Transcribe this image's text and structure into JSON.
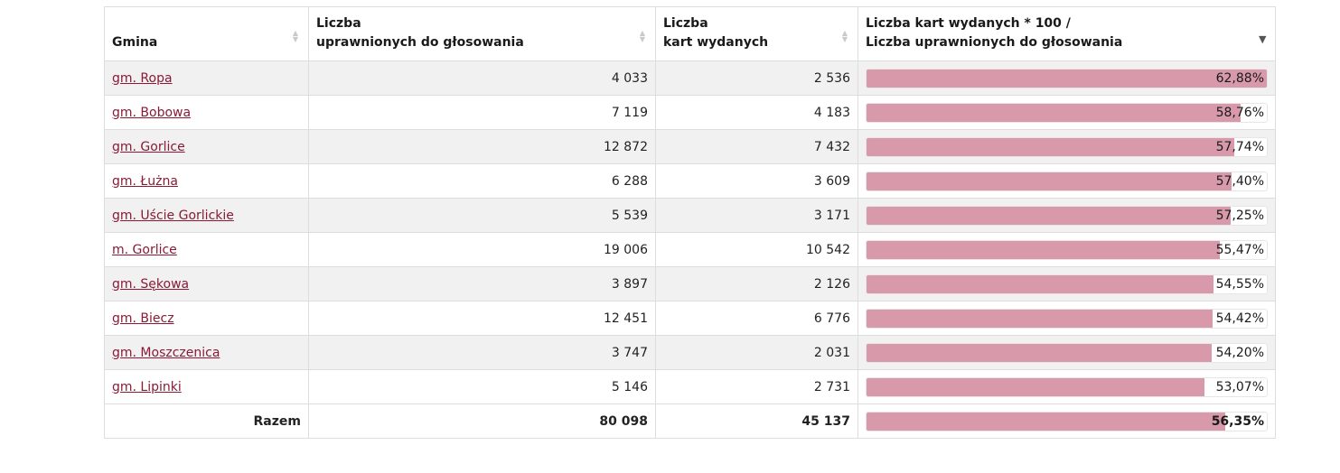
{
  "columns": {
    "gmina": "Gmina",
    "uprawnieni_l1": "Liczba",
    "uprawnieni_l2": "uprawnionych do głosowania",
    "karty_l1": "Liczba",
    "karty_l2": "kart wydanych",
    "frek_l1": "Liczba kart wydanych * 100 /",
    "frek_l2": "Liczba uprawnionych do głosowania"
  },
  "sort_icons": {
    "inactive": "▲▼",
    "active": "▼"
  },
  "colors": {
    "bar_fill": "#d89aab",
    "link": "#8a1a35",
    "row_stripe": "#f1f1f1"
  },
  "rows": [
    {
      "name": "gm. Ropa",
      "uprawnieni": "4 033",
      "karty": "2 536",
      "pct_label": "62,88%",
      "pct": 62.88
    },
    {
      "name": "gm. Bobowa",
      "uprawnieni": "7 119",
      "karty": "4 183",
      "pct_label": "58,76%",
      "pct": 58.76
    },
    {
      "name": "gm. Gorlice",
      "uprawnieni": "12 872",
      "karty": "7 432",
      "pct_label": "57,74%",
      "pct": 57.74
    },
    {
      "name": "gm. Łużna",
      "uprawnieni": "6 288",
      "karty": "3 609",
      "pct_label": "57,40%",
      "pct": 57.4
    },
    {
      "name": "gm. Uście Gorlickie",
      "uprawnieni": "5 539",
      "karty": "3 171",
      "pct_label": "57,25%",
      "pct": 57.25
    },
    {
      "name": "m. Gorlice",
      "uprawnieni": "19 006",
      "karty": "10 542",
      "pct_label": "55,47%",
      "pct": 55.47
    },
    {
      "name": "gm. Sękowa",
      "uprawnieni": "3 897",
      "karty": "2 126",
      "pct_label": "54,55%",
      "pct": 54.55
    },
    {
      "name": "gm. Biecz",
      "uprawnieni": "12 451",
      "karty": "6 776",
      "pct_label": "54,42%",
      "pct": 54.42
    },
    {
      "name": "gm. Moszczenica",
      "uprawnieni": "3 747",
      "karty": "2 031",
      "pct_label": "54,20%",
      "pct": 54.2
    },
    {
      "name": "gm. Lipinki",
      "uprawnieni": "5 146",
      "karty": "2 731",
      "pct_label": "53,07%",
      "pct": 53.07
    }
  ],
  "total": {
    "label": "Razem",
    "uprawnieni": "80 098",
    "karty": "45 137",
    "pct_label": "56,35%",
    "pct": 56.35
  },
  "bar_scale_max": 62.88
}
